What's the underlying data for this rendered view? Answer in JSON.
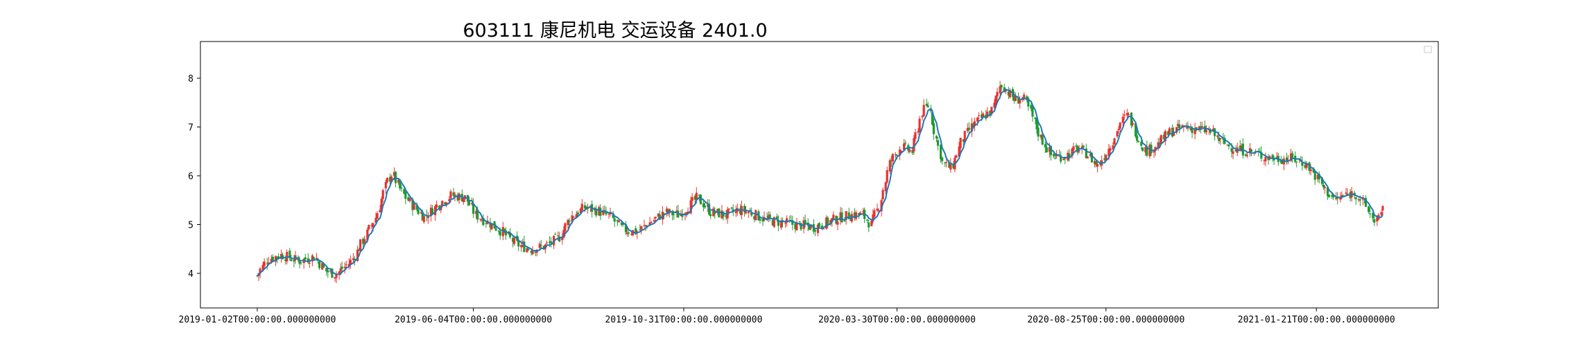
{
  "chart_data": {
    "type": "candlestick",
    "title": "603111 康尼机电 交运设备 2401.0",
    "xlabel": "",
    "ylabel": "",
    "x_range": [
      "2019-01-02",
      "2021-03-10"
    ],
    "ylim": [
      3.3,
      8.8
    ],
    "y_ticks": [
      4,
      5,
      6,
      7,
      8
    ],
    "x_ticks": [
      "2019-01-02T00:00:00.000000000",
      "2019-06-04T00:00:00.000000000",
      "2019-10-31T00:00:00.000000000",
      "2020-03-30T00:00:00.000000000",
      "2020-08-25T00:00:00.000000000",
      "2021-01-21T00:00:00.000000000"
    ],
    "legend": "top-right (empty)",
    "grid": false,
    "colors": {
      "up": "#e8312f",
      "down": "#1f9a2f",
      "ma": "#1f77b4"
    },
    "series": [
      {
        "name": "close",
        "points": [
          [
            "2019-01-02",
            3.95
          ],
          [
            "2019-01-10",
            4.3
          ],
          [
            "2019-01-20",
            4.38
          ],
          [
            "2019-02-01",
            4.25
          ],
          [
            "2019-02-12",
            4.35
          ],
          [
            "2019-02-20",
            4.05
          ],
          [
            "2019-02-27",
            3.98
          ],
          [
            "2019-03-10",
            4.25
          ],
          [
            "2019-03-20",
            4.75
          ],
          [
            "2019-03-28",
            5.2
          ],
          [
            "2019-04-04",
            5.85
          ],
          [
            "2019-04-08",
            6.05
          ],
          [
            "2019-04-14",
            5.7
          ],
          [
            "2019-04-22",
            5.4
          ],
          [
            "2019-05-01",
            5.15
          ],
          [
            "2019-05-10",
            5.4
          ],
          [
            "2019-05-20",
            5.6
          ],
          [
            "2019-05-30",
            5.55
          ],
          [
            "2019-06-06",
            5.2
          ],
          [
            "2019-06-15",
            5.05
          ],
          [
            "2019-06-25",
            4.85
          ],
          [
            "2019-07-05",
            4.6
          ],
          [
            "2019-07-15",
            4.5
          ],
          [
            "2019-07-25",
            4.55
          ],
          [
            "2019-08-05",
            4.75
          ],
          [
            "2019-08-12",
            5.15
          ],
          [
            "2019-08-22",
            5.35
          ],
          [
            "2019-09-01",
            5.28
          ],
          [
            "2019-09-10",
            5.15
          ],
          [
            "2019-09-18",
            4.9
          ],
          [
            "2019-09-28",
            4.85
          ],
          [
            "2019-10-08",
            5.05
          ],
          [
            "2019-10-18",
            5.25
          ],
          [
            "2019-10-28",
            5.2
          ],
          [
            "2019-11-05",
            5.4
          ],
          [
            "2019-11-10",
            5.55
          ],
          [
            "2019-11-20",
            5.25
          ],
          [
            "2019-12-01",
            5.2
          ],
          [
            "2019-12-10",
            5.3
          ],
          [
            "2019-12-18",
            5.25
          ],
          [
            "2019-12-28",
            5.1
          ],
          [
            "2020-01-08",
            5.05
          ],
          [
            "2020-01-18",
            5.0
          ],
          [
            "2020-02-01",
            4.95
          ],
          [
            "2020-02-10",
            5.05
          ],
          [
            "2020-02-20",
            5.15
          ],
          [
            "2020-02-28",
            5.2
          ],
          [
            "2020-03-06",
            5.2
          ],
          [
            "2020-03-12",
            5.0
          ],
          [
            "2020-03-18",
            5.4
          ],
          [
            "2020-03-25",
            6.25
          ],
          [
            "2020-04-02",
            6.6
          ],
          [
            "2020-04-10",
            6.5
          ],
          [
            "2020-04-17",
            7.3
          ],
          [
            "2020-04-22",
            7.45
          ],
          [
            "2020-04-27",
            6.8
          ],
          [
            "2020-05-02",
            6.25
          ],
          [
            "2020-05-08",
            6.15
          ],
          [
            "2020-05-15",
            6.7
          ],
          [
            "2020-05-22",
            7.0
          ],
          [
            "2020-05-30",
            7.2
          ],
          [
            "2020-06-06",
            7.35
          ],
          [
            "2020-06-12",
            7.9
          ],
          [
            "2020-06-16",
            7.75
          ],
          [
            "2020-06-22",
            7.55
          ],
          [
            "2020-06-28",
            7.6
          ],
          [
            "2020-07-03",
            7.3
          ],
          [
            "2020-07-10",
            6.8
          ],
          [
            "2020-07-18",
            6.4
          ],
          [
            "2020-07-27",
            6.4
          ],
          [
            "2020-08-05",
            6.55
          ],
          [
            "2020-08-12",
            6.45
          ],
          [
            "2020-08-20",
            6.2
          ],
          [
            "2020-08-28",
            6.6
          ],
          [
            "2020-09-05",
            7.1
          ],
          [
            "2020-09-10",
            7.25
          ],
          [
            "2020-09-16",
            6.85
          ],
          [
            "2020-09-23",
            6.5
          ],
          [
            "2020-10-01",
            6.65
          ],
          [
            "2020-10-10",
            6.9
          ],
          [
            "2020-10-20",
            7.0
          ],
          [
            "2020-10-30",
            6.95
          ],
          [
            "2020-11-08",
            6.9
          ],
          [
            "2020-11-15",
            6.7
          ],
          [
            "2020-11-25",
            6.55
          ],
          [
            "2020-12-05",
            6.5
          ],
          [
            "2020-12-15",
            6.4
          ],
          [
            "2020-12-25",
            6.35
          ],
          [
            "2021-01-05",
            6.35
          ],
          [
            "2021-01-14",
            6.25
          ],
          [
            "2021-01-22",
            5.95
          ],
          [
            "2021-01-28",
            5.7
          ],
          [
            "2021-02-04",
            5.5
          ],
          [
            "2021-02-10",
            5.6
          ],
          [
            "2021-02-18",
            5.65
          ],
          [
            "2021-02-25",
            5.4
          ],
          [
            "2021-03-03",
            5.1
          ],
          [
            "2021-03-08",
            5.15
          ],
          [
            "2021-03-10",
            5.35
          ]
        ]
      }
    ]
  }
}
